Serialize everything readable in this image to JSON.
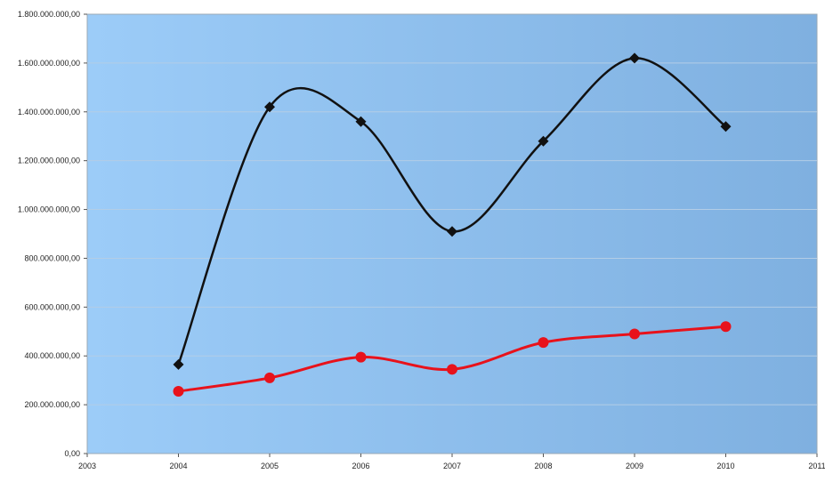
{
  "chart_data": {
    "type": "line",
    "x_ticks": [
      "2003",
      "2004",
      "2005",
      "2006",
      "2007",
      "2008",
      "2009",
      "2010",
      "2011"
    ],
    "y_ticks": [
      "0,00",
      "200.000.000,00",
      "400.000.000,00",
      "600.000.000,00",
      "800.000.000,00",
      "1.000.000.000,00",
      "1.200.000.000,00",
      "1.400.000.000,00",
      "1.600.000.000,00",
      "1.800.000.000,00"
    ],
    "xlim": [
      2003,
      2011
    ],
    "ylim": [
      0,
      1800000000
    ],
    "grid": true,
    "background": {
      "left": "#9cccf8",
      "right": "#7fb0e0"
    },
    "series": [
      {
        "color": "#111111",
        "marker": "diamond",
        "x": [
          2004,
          2005,
          2006,
          2007,
          2008,
          2009,
          2010
        ],
        "values": [
          365000000,
          1420000000,
          1360000000,
          910000000,
          1280000000,
          1620000000,
          1340000000
        ]
      },
      {
        "color": "#e8121b",
        "marker": "circle",
        "x": [
          2004,
          2005,
          2006,
          2007,
          2008,
          2009,
          2010
        ],
        "values": [
          255000000,
          310000000,
          395000000,
          345000000,
          455000000,
          490000000,
          520000000
        ]
      }
    ]
  }
}
